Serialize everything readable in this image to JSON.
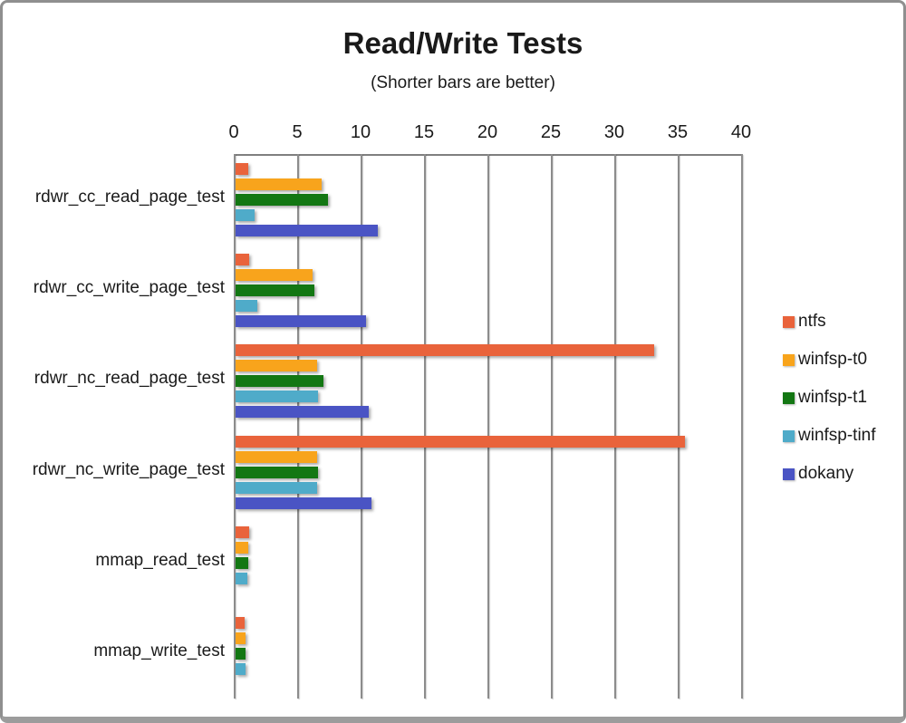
{
  "window": {
    "background": "#ffffff",
    "border_color": "#8f8f8f"
  },
  "chart_data": {
    "type": "bar",
    "orientation": "horizontal",
    "title": "Read/Write Tests",
    "subtitle": "(Shorter bars are better)",
    "grid": true,
    "gridline_color": "#8c8c8c",
    "value_axis": {
      "position": "top",
      "min": 0,
      "max": 40,
      "tick_interval": 5,
      "ticks": [
        0,
        5,
        10,
        15,
        20,
        25,
        30,
        35,
        40
      ]
    },
    "categories": [
      "rdwr_cc_read_page_test",
      "rdwr_cc_write_page_test",
      "rdwr_nc_read_page_test",
      "rdwr_nc_write_page_test",
      "mmap_read_test",
      "mmap_write_test"
    ],
    "series": [
      {
        "name": "ntfs",
        "color": "#E9633B",
        "values": [
          1.0,
          1.1,
          33.0,
          35.4,
          1.1,
          0.7
        ]
      },
      {
        "name": "winfsp-t0",
        "color": "#F8A41C",
        "values": [
          6.8,
          6.1,
          6.4,
          6.4,
          1.0,
          0.8
        ]
      },
      {
        "name": "winfsp-t1",
        "color": "#137713",
        "values": [
          7.3,
          6.2,
          6.9,
          6.5,
          1.0,
          0.8
        ]
      },
      {
        "name": "winfsp-tinf",
        "color": "#4FABC9",
        "values": [
          1.5,
          1.7,
          6.5,
          6.4,
          0.9,
          0.8
        ]
      },
      {
        "name": "dokany",
        "color": "#4A54C4",
        "values": [
          11.2,
          10.3,
          10.5,
          10.7,
          0,
          0
        ]
      }
    ],
    "legend": {
      "position": "right"
    }
  }
}
